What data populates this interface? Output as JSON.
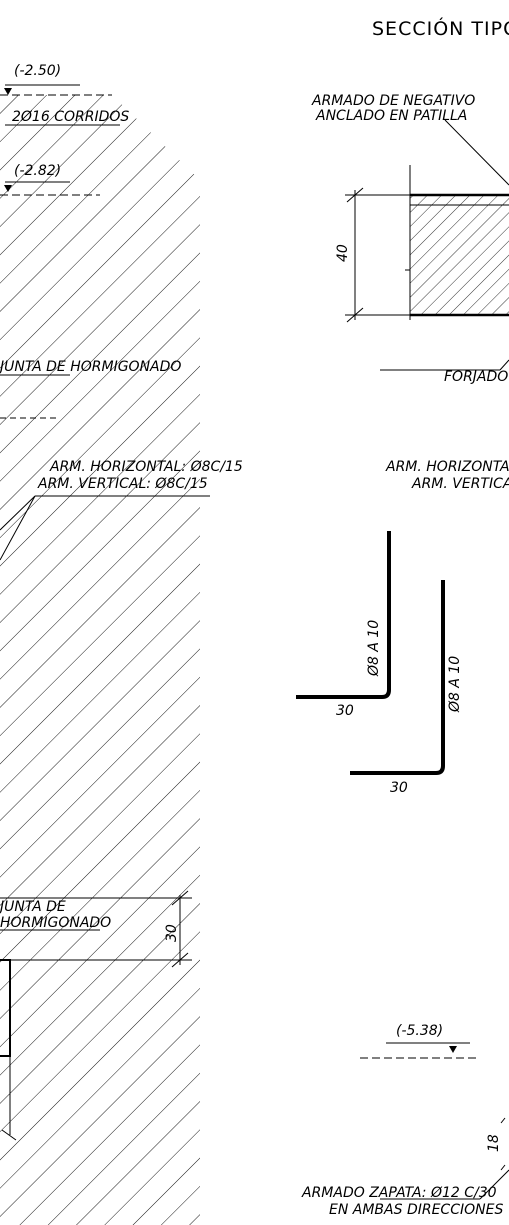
{
  "title": "SECCIÓN TIPO",
  "levels": {
    "top": "(-2.50)",
    "mid": "(-2.82)",
    "bottom": "(-5.38)"
  },
  "rebar_notes": {
    "corridos": "2Ø16 CORRIDOS",
    "negativo_line1": "ARMADO DE NEGATIVO",
    "negativo_line2": "ANCLADO EN PATILLA",
    "junta_1": "JUNTA DE HORMIGONADO",
    "horizontal_left": "ARM. HORIZONTAL: Ø8C/15",
    "vertical_left": "ARM. VERTICAL: Ø8C/15",
    "horizontal_right": "ARM. HORIZONTAL",
    "vertical_right": "ARM. VERTICAL",
    "junta_2_line1": "JUNTA DE",
    "junta_2_line2": "HORMIGONADO",
    "forjado": "FORJADO",
    "zapata_line1": "ARMADO ZAPATA: Ø12 C/30",
    "zapata_line2": "EN AMBAS DIRECCIONES"
  },
  "dimensions": {
    "slab": "40",
    "foot_left": "30",
    "foot_right": "30",
    "bar_left": "Ø8 A 10",
    "bar_right": "Ø8 A 10",
    "footing": "30",
    "zapata_dim": "18"
  }
}
